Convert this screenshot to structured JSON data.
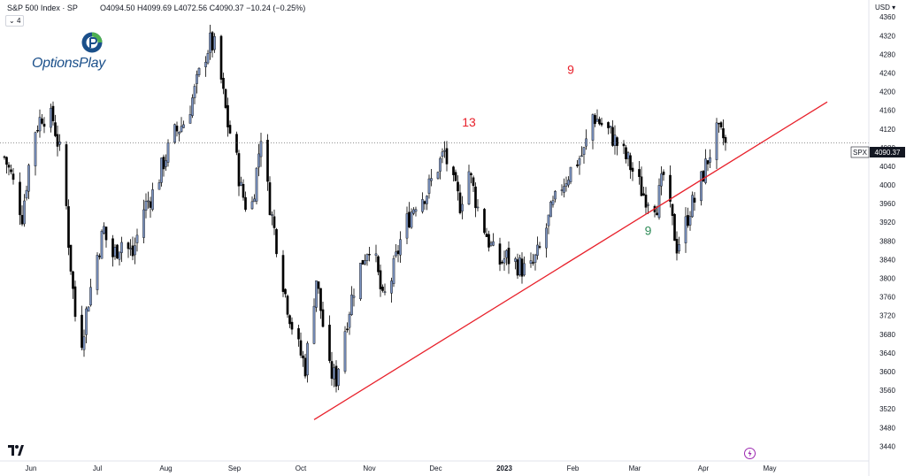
{
  "header": {
    "symbol": "S&P 500 Index · SP",
    "ohlc": "O4094.50 H4099.69 L4072.56 C4090.37 −10.24 (−0.25%)",
    "indicator_count": "4",
    "currency": "USD"
  },
  "branding": {
    "logo_text": "OptionsPlay"
  },
  "price_tag": {
    "ticker": "SPX",
    "value": "4090.37"
  },
  "colors": {
    "up_fill": "#7d95c4",
    "down_fill": "#000000",
    "trendline": "#e8212b",
    "seq_red": "#e8212b",
    "seq_green": "#2e8b57",
    "axis_text": "#131722"
  },
  "chart_data": {
    "type": "candlestick",
    "title": "",
    "x_labels": [
      {
        "label": "Jun",
        "day": 12
      },
      {
        "label": "Jul",
        "day": 42
      },
      {
        "label": "Aug",
        "day": 73
      },
      {
        "label": "Sep",
        "day": 104
      },
      {
        "label": "Oct",
        "day": 134
      },
      {
        "label": "Nov",
        "day": 165
      },
      {
        "label": "Dec",
        "day": 195
      },
      {
        "label": "2023",
        "day": 226,
        "bold": true
      },
      {
        "label": "Feb",
        "day": 257
      },
      {
        "label": "Mar",
        "day": 285
      },
      {
        "label": "Apr",
        "day": 316
      },
      {
        "label": "May",
        "day": 346
      }
    ],
    "y_ticks": [
      3440,
      3480,
      3520,
      3560,
      3600,
      3640,
      3680,
      3720,
      3760,
      3800,
      3840,
      3880,
      3920,
      3960,
      4000,
      4040,
      4080,
      4120,
      4160,
      4200,
      4240,
      4280,
      4320,
      4360
    ],
    "y_range": [
      3418,
      4385
    ],
    "last_price": 4090.37,
    "path_points": [
      [
        0,
        4060
      ],
      [
        3,
        4020
      ],
      [
        8,
        3935
      ],
      [
        13,
        4110
      ],
      [
        17,
        4150
      ],
      [
        22,
        4140
      ],
      [
        27,
        4025
      ],
      [
        29,
        3880
      ],
      [
        32,
        3720
      ],
      [
        35,
        3670
      ],
      [
        38,
        3755
      ],
      [
        42,
        3850
      ],
      [
        45,
        3905
      ],
      [
        48,
        3840
      ],
      [
        53,
        3880
      ],
      [
        58,
        3850
      ],
      [
        63,
        3950
      ],
      [
        68,
        3990
      ],
      [
        72,
        4050
      ],
      [
        77,
        4110
      ],
      [
        82,
        4140
      ],
      [
        86,
        4200
      ],
      [
        90,
        4270
      ],
      [
        93,
        4305
      ],
      [
        96,
        4290
      ],
      [
        99,
        4190
      ],
      [
        101,
        4130
      ],
      [
        104,
        4080
      ],
      [
        107,
        3990
      ],
      [
        110,
        3945
      ],
      [
        112,
        3960
      ],
      [
        114,
        4030
      ],
      [
        116,
        4110
      ],
      [
        119,
        3990
      ],
      [
        121,
        3930
      ],
      [
        124,
        3850
      ],
      [
        127,
        3765
      ],
      [
        130,
        3700
      ],
      [
        133,
        3650
      ],
      [
        136,
        3610
      ],
      [
        139,
        3720
      ],
      [
        141,
        3800
      ],
      [
        144,
        3700
      ],
      [
        147,
        3600
      ],
      [
        150,
        3585
      ],
      [
        153,
        3670
      ],
      [
        158,
        3780
      ],
      [
        162,
        3840
      ],
      [
        165,
        3875
      ],
      [
        168,
        3830
      ],
      [
        171,
        3750
      ],
      [
        175,
        3800
      ],
      [
        180,
        3900
      ],
      [
        186,
        3965
      ],
      [
        191,
        3985
      ],
      [
        195,
        4030
      ],
      [
        199,
        4070
      ],
      [
        202,
        4010
      ],
      [
        206,
        3960
      ],
      [
        210,
        4030
      ],
      [
        214,
        3950
      ],
      [
        219,
        3880
      ],
      [
        223,
        3830
      ],
      [
        227,
        3845
      ],
      [
        232,
        3830
      ],
      [
        237,
        3810
      ],
      [
        242,
        3860
      ],
      [
        247,
        3940
      ],
      [
        252,
        4000
      ],
      [
        257,
        4040
      ],
      [
        262,
        4070
      ],
      [
        266,
        4150
      ],
      [
        270,
        4130
      ],
      [
        274,
        4110
      ],
      [
        278,
        4080
      ],
      [
        282,
        4050
      ],
      [
        286,
        4010
      ],
      [
        289,
        3980
      ],
      [
        292,
        3970
      ],
      [
        295,
        3960
      ],
      [
        298,
        4020
      ],
      [
        301,
        3940
      ],
      [
        304,
        3870
      ],
      [
        307,
        3900
      ],
      [
        310,
        3950
      ],
      [
        313,
        3975
      ],
      [
        316,
        4025
      ],
      [
        319,
        4070
      ],
      [
        322,
        4110
      ],
      [
        325,
        4100
      ],
      [
        326,
        4090.37
      ]
    ],
    "trendline": {
      "start": {
        "day": 140,
        "value": 3497
      },
      "end": {
        "day": 372,
        "value": 4178
      }
    },
    "annotations": [
      {
        "label": "13",
        "day": 210,
        "value": 4125,
        "color": "#e8212b"
      },
      {
        "label": "9",
        "day": 256,
        "value": 4238,
        "color": "#e8212b"
      },
      {
        "label": "9",
        "day": 291,
        "value": 3893,
        "color": "#2e8b57"
      }
    ],
    "grid": false
  }
}
